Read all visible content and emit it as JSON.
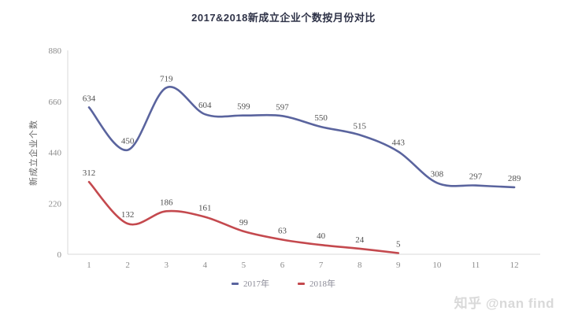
{
  "title": "2017&2018新成立企业个数按月份对比",
  "watermark": "知乎 @nan find",
  "chart_data": {
    "type": "line",
    "smooth": true,
    "x": [
      1,
      2,
      3,
      4,
      5,
      6,
      7,
      8,
      9,
      10,
      11,
      12
    ],
    "series": [
      {
        "name": "2017年",
        "color": "#5a649e",
        "values": [
          634,
          450,
          719,
          604,
          599,
          597,
          550,
          515,
          443,
          308,
          297,
          289
        ]
      },
      {
        "name": "2018年",
        "color": "#c4494e",
        "values": [
          312,
          132,
          186,
          161,
          99,
          63,
          40,
          24,
          5
        ]
      }
    ],
    "title": "2017&2018新成立企业个数按月份对比",
    "xlabel": "",
    "ylabel": "新成立企业个数",
    "ylim": [
      0,
      880
    ],
    "yticks": [
      0,
      220,
      440,
      660,
      880
    ],
    "grid": false,
    "data_labels": true,
    "legend_position": "bottom"
  },
  "colors": {
    "axis_line": "#d9d9d9",
    "tick_label": "#8c8c8c",
    "data_label": "#4f4f4f",
    "title": "#2f3348",
    "legend_text": "#8a8a96",
    "watermark": "#d9d9d9"
  }
}
